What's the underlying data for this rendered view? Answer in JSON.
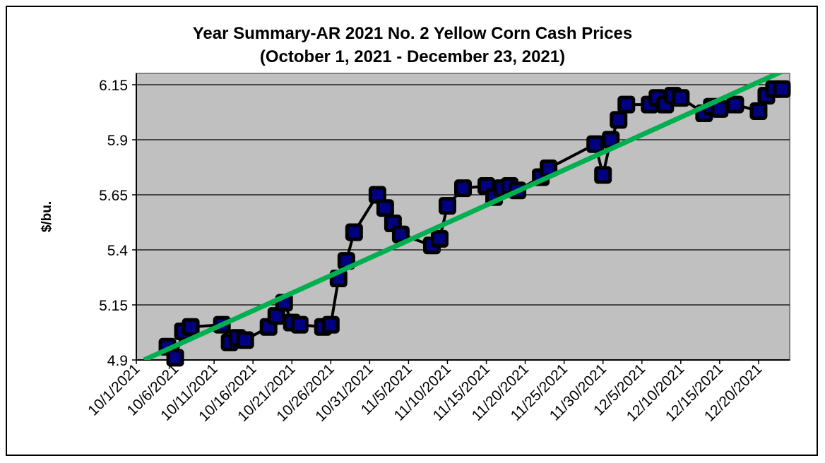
{
  "chart_data": {
    "type": "line",
    "title": "Year Summary-AR 2021 No. 2 Yellow Corn Cash Prices",
    "subtitle": "(October 1, 2021 - December 23, 2021)",
    "xlabel": "",
    "ylabel": "$/bu.",
    "ylim": [
      4.9,
      6.2
    ],
    "yticks": [
      "4.9",
      "5.15",
      "5.4",
      "5.65",
      "5.9",
      "6.15"
    ],
    "xlim": [
      "10/1/2021",
      "12/24/2021"
    ],
    "xticks": [
      "10/1/2021",
      "10/6/2021",
      "10/11/2021",
      "10/16/2021",
      "10/21/2021",
      "10/26/2021",
      "10/31/2021",
      "11/5/2021",
      "11/10/2021",
      "11/15/2021",
      "11/20/2021",
      "11/25/2021",
      "11/30/2021",
      "12/5/2021",
      "12/10/2021",
      "12/15/2021",
      "12/20/2021"
    ],
    "grid": true,
    "plot_background": "#c0c0c0",
    "series": [
      {
        "color": "#000000",
        "marker_color": "#000080",
        "x": [
          "10/5/2021",
          "10/6/2021",
          "10/7/2021",
          "10/8/2021",
          "10/12/2021",
          "10/13/2021",
          "10/14/2021",
          "10/15/2021",
          "10/18/2021",
          "10/19/2021",
          "10/20/2021",
          "10/21/2021",
          "10/22/2021",
          "10/25/2021",
          "10/26/2021",
          "10/27/2021",
          "10/28/2021",
          "10/29/2021",
          "11/1/2021",
          "11/2/2021",
          "11/3/2021",
          "11/4/2021",
          "11/8/2021",
          "11/9/2021",
          "11/10/2021",
          "11/12/2021",
          "11/15/2021",
          "11/16/2021",
          "11/17/2021",
          "11/18/2021",
          "11/19/2021",
          "11/22/2021",
          "11/23/2021",
          "11/29/2021",
          "11/30/2021",
          "12/1/2021",
          "12/2/2021",
          "12/3/2021",
          "12/6/2021",
          "12/7/2021",
          "12/8/2021",
          "12/9/2021",
          "12/10/2021",
          "12/13/2021",
          "12/14/2021",
          "12/15/2021",
          "12/17/2021",
          "12/20/2021",
          "12/21/2021",
          "12/22/2021",
          "12/23/2021"
        ],
        "y": [
          4.96,
          4.91,
          5.03,
          5.05,
          5.06,
          4.98,
          5.0,
          4.99,
          5.05,
          5.1,
          5.16,
          5.07,
          5.06,
          5.05,
          5.06,
          5.27,
          5.35,
          5.48,
          5.65,
          5.59,
          5.52,
          5.47,
          5.42,
          5.45,
          5.6,
          5.68,
          5.69,
          5.64,
          5.68,
          5.69,
          5.67,
          5.73,
          5.77,
          5.88,
          5.74,
          5.9,
          5.99,
          6.06,
          6.06,
          6.09,
          6.06,
          6.1,
          6.09,
          6.02,
          6.05,
          6.04,
          6.06,
          6.03,
          6.1,
          6.13,
          6.13
        ]
      }
    ],
    "trendline": {
      "type": "linear",
      "color": "#00b050",
      "x": [
        "10/2/2021",
        "12/23/2021"
      ],
      "y": [
        4.9,
        6.21
      ]
    }
  }
}
